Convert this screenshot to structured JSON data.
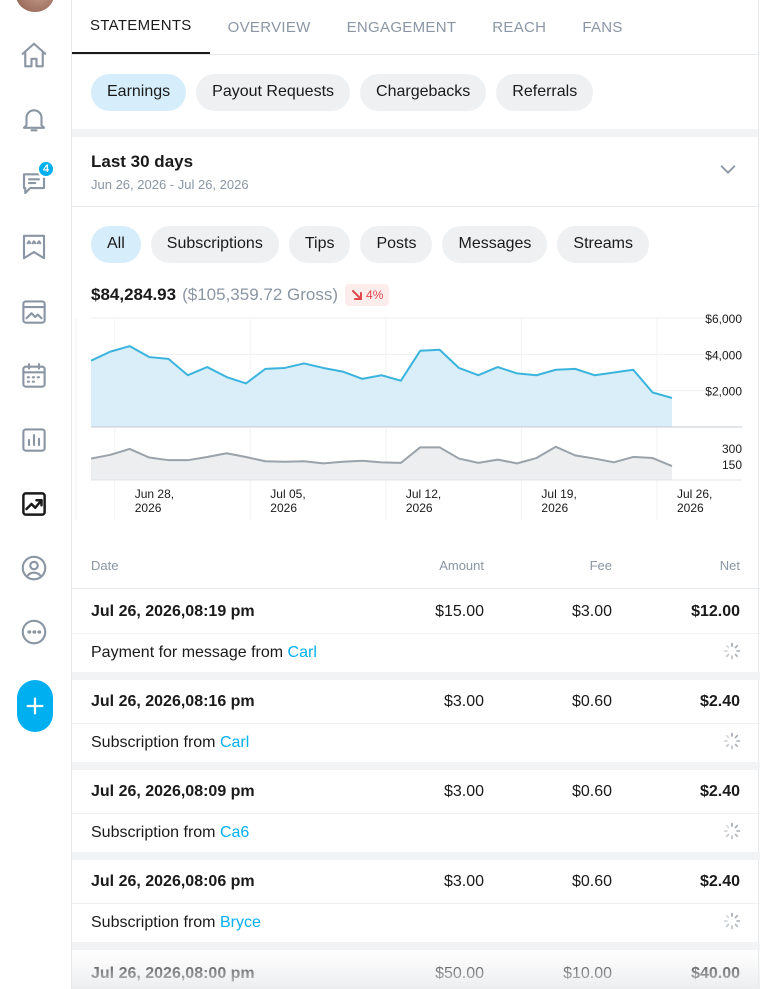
{
  "tabs": [
    {
      "label": "STATEMENTS",
      "active": true
    },
    {
      "label": "OVERVIEW"
    },
    {
      "label": "ENGAGEMENT"
    },
    {
      "label": "REACH"
    },
    {
      "label": "FANS"
    }
  ],
  "subtabs": [
    {
      "label": "Earnings",
      "active": true
    },
    {
      "label": "Payout Requests"
    },
    {
      "label": "Chargebacks"
    },
    {
      "label": "Referrals"
    }
  ],
  "period": {
    "title": "Last 30 days",
    "range": "Jun 26, 2026 - Jul 26, 2026"
  },
  "filters": [
    {
      "label": "All",
      "active": true
    },
    {
      "label": "Subscriptions"
    },
    {
      "label": "Tips"
    },
    {
      "label": "Posts"
    },
    {
      "label": "Messages"
    },
    {
      "label": "Streams"
    }
  ],
  "summary": {
    "total": "$84,284.93",
    "gross": "($105,359.72 Gross)",
    "delta": "4%"
  },
  "notifications_badge": "4",
  "colors": {
    "accent": "#00aff0",
    "area_fill": "#d9eef9",
    "line": "#3bb4dd",
    "secondary_line": "#9aa2aa",
    "negative": "#e0474c"
  },
  "sidebar_icons": [
    "home-icon",
    "bell-icon",
    "chat-icon",
    "bookmark-stars-icon",
    "image-icon",
    "calendar-icon",
    "bar-chart-icon",
    "trending-icon",
    "profile-icon",
    "more-icon",
    "plus-icon"
  ],
  "chart_data": [
    {
      "type": "area",
      "title": "",
      "x": [
        "Jun 26",
        "Jun 27",
        "Jun 28",
        "Jun 29",
        "Jun 30",
        "Jul 01",
        "Jul 02",
        "Jul 03",
        "Jul 04",
        "Jul 05",
        "Jul 06",
        "Jul 07",
        "Jul 08",
        "Jul 09",
        "Jul 10",
        "Jul 11",
        "Jul 12",
        "Jul 13",
        "Jul 14",
        "Jul 15",
        "Jul 16",
        "Jul 17",
        "Jul 18",
        "Jul 19",
        "Jul 20",
        "Jul 21",
        "Jul 22",
        "Jul 23",
        "Jul 24",
        "Jul 25",
        "Jul 26"
      ],
      "series": [
        {
          "values": [
            3650,
            4150,
            4450,
            3850,
            3750,
            2850,
            3300,
            2750,
            2400,
            3200,
            3250,
            3500,
            3250,
            3050,
            2650,
            2850,
            2550,
            4200,
            4250,
            3250,
            2850,
            3300,
            2950,
            2850,
            3150,
            3200,
            2850,
            3000,
            3150,
            1900,
            1600
          ]
        }
      ],
      "ylim": [
        0,
        6000
      ],
      "yticks": [
        "$6,000",
        "$4,000",
        "$2,000"
      ],
      "xticks": [
        {
          "line1": "Jun 28,",
          "line2": "2026"
        },
        {
          "line1": "Jul 05,",
          "line2": "2026"
        },
        {
          "line1": "Jul 12,",
          "line2": "2026"
        },
        {
          "line1": "Jul 19,",
          "line2": "2026"
        },
        {
          "line1": "Jul 26,",
          "line2": "2026"
        }
      ],
      "grid": true
    },
    {
      "type": "area",
      "title": "",
      "x": [
        "Jun 26",
        "Jun 27",
        "Jun 28",
        "Jun 29",
        "Jun 30",
        "Jul 01",
        "Jul 02",
        "Jul 03",
        "Jul 04",
        "Jul 05",
        "Jul 06",
        "Jul 07",
        "Jul 08",
        "Jul 09",
        "Jul 10",
        "Jul 11",
        "Jul 12",
        "Jul 13",
        "Jul 14",
        "Jul 15",
        "Jul 16",
        "Jul 17",
        "Jul 18",
        "Jul 19",
        "Jul 20",
        "Jul 21",
        "Jul 22",
        "Jul 23",
        "Jul 24",
        "Jul 25",
        "Jul 26"
      ],
      "series": [
        {
          "values": [
            200,
            235,
            290,
            210,
            185,
            185,
            215,
            250,
            215,
            175,
            170,
            175,
            155,
            170,
            180,
            165,
            160,
            305,
            305,
            200,
            160,
            190,
            155,
            205,
            310,
            230,
            200,
            165,
            215,
            205,
            130
          ]
        }
      ],
      "ylim": [
        0,
        420
      ],
      "yticks": [
        "300",
        "150"
      ],
      "grid": true
    }
  ],
  "table": {
    "headers": {
      "date": "Date",
      "amount": "Amount",
      "fee": "Fee",
      "net": "Net"
    },
    "rows": [
      {
        "date": "Jul 26, 2026,08:19 pm",
        "amount": "$15.00",
        "fee": "$3.00",
        "net": "$12.00",
        "desc": "Payment for message from",
        "who": "Carl"
      },
      {
        "date": "Jul 26, 2026,08:16 pm",
        "amount": "$3.00",
        "fee": "$0.60",
        "net": "$2.40",
        "desc": "Subscription from",
        "who": "Carl"
      },
      {
        "date": "Jul 26, 2026,08:09 pm",
        "amount": "$3.00",
        "fee": "$0.60",
        "net": "$2.40",
        "desc": "Subscription from",
        "who": "Ca6"
      },
      {
        "date": "Jul 26, 2026,08:06 pm",
        "amount": "$3.00",
        "fee": "$0.60",
        "net": "$2.40",
        "desc": "Subscription from",
        "who": "Bryce"
      },
      {
        "date": "Jul 26, 2026,08:00 pm",
        "amount": "$50.00",
        "fee": "$10.00",
        "net": "$40.00",
        "desc": "",
        "who": ""
      }
    ]
  }
}
